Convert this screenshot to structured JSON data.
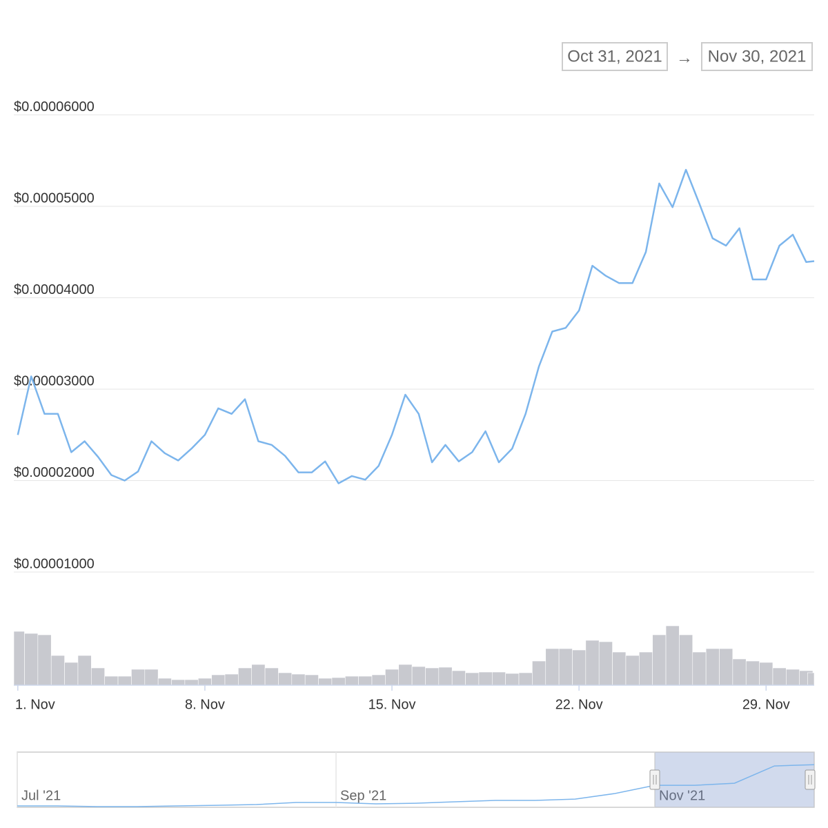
{
  "range_selector": {
    "from": "Oct 31, 2021",
    "separator": "→",
    "to": "Nov 30, 2021"
  },
  "chart_data": {
    "type": "line",
    "color": "#7cb5ec",
    "grid": true,
    "x": [
      1,
      1.5,
      2,
      2.5,
      3,
      3.5,
      4,
      4.5,
      5,
      5.5,
      6,
      6.5,
      7,
      7.5,
      8,
      8.5,
      9,
      9.5,
      10,
      10.5,
      11,
      11.5,
      12,
      12.5,
      13,
      13.5,
      14,
      14.5,
      15,
      15.5,
      16,
      16.5,
      17,
      17.5,
      18,
      18.5,
      19,
      19.5,
      20,
      20.5,
      21,
      21.5,
      22,
      22.5,
      23,
      23.5,
      24,
      24.5,
      25,
      25.5,
      26,
      26.5,
      27,
      27.5,
      28,
      28.5,
      29,
      29.5,
      30,
      30.5,
      30.8
    ],
    "values": [
      2.5e-05,
      3.14e-05,
      2.73e-05,
      2.73e-05,
      2.31e-05,
      2.43e-05,
      2.26e-05,
      2.06e-05,
      2e-05,
      2.1e-05,
      2.43e-05,
      2.3e-05,
      2.22e-05,
      2.35e-05,
      2.5e-05,
      2.79e-05,
      2.73e-05,
      2.89e-05,
      2.43e-05,
      2.39e-05,
      2.27e-05,
      2.09e-05,
      2.09e-05,
      2.21e-05,
      1.97e-05,
      2.05e-05,
      2.01e-05,
      2.16e-05,
      2.5e-05,
      2.94e-05,
      2.73e-05,
      2.2e-05,
      2.39e-05,
      2.21e-05,
      2.31e-05,
      2.54e-05,
      2.2e-05,
      2.35e-05,
      2.73e-05,
      3.25e-05,
      3.63e-05,
      3.67e-05,
      3.86e-05,
      4.35e-05,
      4.24e-05,
      4.16e-05,
      4.16e-05,
      4.5e-05,
      5.25e-05,
      4.99e-05,
      5.4e-05,
      5.03e-05,
      4.65e-05,
      4.57e-05,
      4.76e-05,
      4.2e-05,
      4.2e-05,
      4.57e-05,
      4.69e-05,
      4.39e-05,
      4.4e-05
    ],
    "xlim": [
      0.85,
      30.8
    ],
    "xticks": [
      {
        "value": 1,
        "label": "1. Nov"
      },
      {
        "value": 8,
        "label": "8. Nov"
      },
      {
        "value": 15,
        "label": "15. Nov"
      },
      {
        "value": 22,
        "label": "22. Nov"
      },
      {
        "value": 29,
        "label": "29. Nov"
      }
    ],
    "ylim": [
      1e-05,
      6.2e-05
    ],
    "yticks": [
      {
        "value": 1e-05,
        "label": "$0.00001000"
      },
      {
        "value": 2e-05,
        "label": "$0.00002000"
      },
      {
        "value": 3e-05,
        "label": "$0.00003000"
      },
      {
        "value": 4e-05,
        "label": "$0.00004000"
      },
      {
        "value": 5e-05,
        "label": "$0.00005000"
      },
      {
        "value": 6e-05,
        "label": "$0.00006000"
      }
    ],
    "volume": {
      "color": "#c8c9cf",
      "ylim": [
        0,
        90
      ],
      "values": [
        78,
        75,
        73,
        43,
        33,
        43,
        25,
        13,
        13,
        23,
        23,
        10,
        8,
        8,
        10,
        15,
        16,
        25,
        30,
        25,
        18,
        16,
        15,
        10,
        11,
        13,
        13,
        15,
        23,
        30,
        27,
        25,
        26,
        21,
        18,
        19,
        19,
        17,
        18,
        35,
        53,
        53,
        51,
        65,
        63,
        48,
        43,
        48,
        73,
        86,
        73,
        48,
        53,
        53,
        38,
        35,
        33,
        25,
        23,
        21,
        18
      ]
    },
    "navigator": {
      "color": "#7cb5ec",
      "xlim": [
        7,
        12
      ],
      "ylim": [
        0,
        6e-05
      ],
      "range": [
        11,
        12
      ],
      "xticks": [
        {
          "value": 7,
          "label": "Jul '21"
        },
        {
          "value": 9,
          "label": "Sep '21"
        },
        {
          "value": 11,
          "label": "Nov '21"
        }
      ],
      "x": [
        7,
        7.25,
        7.5,
        7.75,
        8,
        8.25,
        8.5,
        8.75,
        9,
        9.25,
        9.5,
        9.75,
        10,
        10.25,
        10.5,
        10.75,
        11,
        11.25,
        11.5,
        11.75,
        12
      ],
      "values": [
        2.9e-06,
        2.9e-06,
        2.2e-06,
        2.2e-06,
        2.9e-06,
        3.6e-06,
        4.4e-06,
        6.6e-06,
        6.6e-06,
        5.1e-06,
        5.8e-06,
        7.3e-06,
        8.8e-06,
        8.8e-06,
        1.02e-05,
        1.61e-05,
        2.48e-05,
        2.48e-05,
        2.7e-05,
        4.53e-05,
        4.67e-05
      ]
    }
  }
}
